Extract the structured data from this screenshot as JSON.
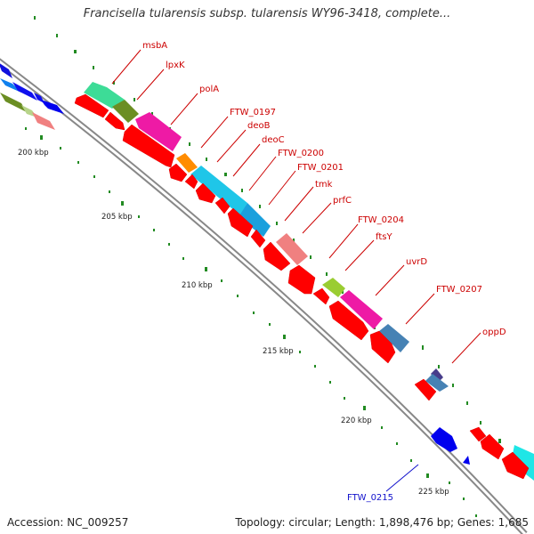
{
  "header": {
    "title": "Francisella tularensis subsp. tularensis WY96-3418, complete..."
  },
  "footer": {
    "accession": "Accession: NC_009257",
    "summary": "Topology: circular; Length: 1,898,476 bp; Genes: 1,685"
  },
  "ruler": {
    "labels": [
      "200 kbp",
      "205 kbp",
      "210 kbp",
      "215 kbp",
      "220 kbp",
      "225 kbp"
    ]
  },
  "genes": [
    {
      "name": "msbA",
      "color": "#cc0000"
    },
    {
      "name": "lpxK",
      "color": "#cc0000"
    },
    {
      "name": "polA",
      "color": "#cc0000"
    },
    {
      "name": "FTW_0197",
      "color": "#cc0000"
    },
    {
      "name": "deoB",
      "color": "#cc0000"
    },
    {
      "name": "deoC",
      "color": "#cc0000"
    },
    {
      "name": "FTW_0200",
      "color": "#cc0000"
    },
    {
      "name": "FTW_0201",
      "color": "#cc0000"
    },
    {
      "name": "tmk",
      "color": "#cc0000"
    },
    {
      "name": "prfC",
      "color": "#cc0000"
    },
    {
      "name": "FTW_0204",
      "color": "#cc0000"
    },
    {
      "name": "ftsY",
      "color": "#cc0000"
    },
    {
      "name": "uvrD",
      "color": "#cc0000"
    },
    {
      "name": "FTW_0207",
      "color": "#cc0000"
    },
    {
      "name": "oppD",
      "color": "#cc0000"
    },
    {
      "name": "FTW_0215",
      "color": "#1010cc"
    }
  ],
  "colors": {
    "backbone": "#888888",
    "forward_strand": "#ff0000",
    "reverse_strand": "#0000ee",
    "tick": "#228b22"
  }
}
